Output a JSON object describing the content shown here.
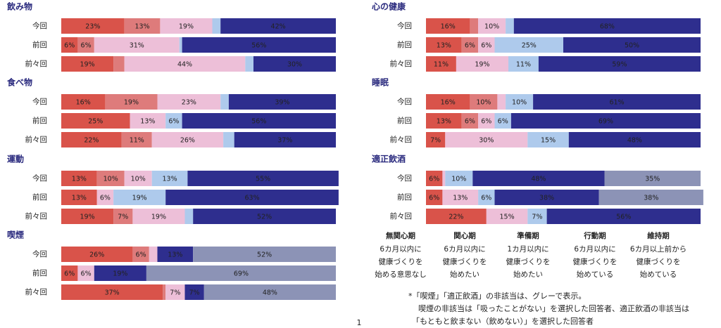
{
  "chart_data": [
    {
      "type": "bar",
      "title": "飲み物",
      "categories": [
        "今回",
        "前回",
        "前々回"
      ],
      "series": [
        {
          "values": [
            23,
            6,
            19
          ],
          "value_labels": [
            "23%",
            "6%",
            "19%"
          ]
        },
        {
          "values": [
            13,
            6,
            4
          ],
          "value_labels": [
            "13%",
            "6%",
            null
          ]
        },
        {
          "values": [
            19,
            31,
            44
          ],
          "value_labels": [
            "19%",
            "31%",
            "44%"
          ]
        },
        {
          "values": [
            3,
            1,
            3
          ],
          "value_labels": [
            null,
            null,
            null
          ]
        },
        {
          "values": [
            42,
            56,
            30
          ],
          "value_labels": [
            "42%",
            "56%",
            "30%"
          ]
        }
      ]
    },
    {
      "type": "bar",
      "title": "食べ物",
      "categories": [
        "今回",
        "前回",
        "前々回"
      ],
      "series": [
        {
          "values": [
            16,
            25,
            22
          ],
          "value_labels": [
            "16%",
            "25%",
            "22%"
          ]
        },
        {
          "values": [
            19,
            0,
            11
          ],
          "value_labels": [
            "19%",
            null,
            "11%"
          ]
        },
        {
          "values": [
            23,
            13,
            26
          ],
          "value_labels": [
            "23%",
            "13%",
            "26%"
          ]
        },
        {
          "values": [
            3,
            6,
            4
          ],
          "value_labels": [
            null,
            "6%",
            null
          ]
        },
        {
          "values": [
            39,
            56,
            37
          ],
          "value_labels": [
            "39%",
            "56%",
            "37%"
          ]
        }
      ]
    },
    {
      "type": "bar",
      "title": "運動",
      "categories": [
        "今回",
        "前回",
        "前々回"
      ],
      "series": [
        {
          "values": [
            13,
            13,
            19
          ],
          "value_labels": [
            "13%",
            "13%",
            "19%"
          ]
        },
        {
          "values": [
            10,
            0,
            7
          ],
          "value_labels": [
            "10%",
            null,
            "7%"
          ]
        },
        {
          "values": [
            10,
            6,
            19
          ],
          "value_labels": [
            "10%",
            "6%",
            "19%"
          ]
        },
        {
          "values": [
            13,
            19,
            3
          ],
          "value_labels": [
            "13%",
            "19%",
            null
          ]
        },
        {
          "values": [
            55,
            63,
            52
          ],
          "value_labels": [
            "55%",
            "63%",
            "52%"
          ]
        }
      ]
    },
    {
      "type": "bar",
      "title": "喫煙",
      "categories": [
        "今回",
        "前回",
        "前々回"
      ],
      "series": [
        {
          "values": [
            26,
            6,
            37
          ],
          "value_labels": [
            "26%",
            "6%",
            "37%"
          ]
        },
        {
          "values": [
            6,
            0,
            1
          ],
          "value_labels": [
            "6%",
            null,
            null
          ]
        },
        {
          "values": [
            3,
            6,
            7
          ],
          "value_labels": [
            null,
            "6%",
            "7%"
          ]
        },
        {
          "values": [
            0,
            0,
            0
          ],
          "value_labels": [
            null,
            null,
            null
          ]
        },
        {
          "values": [
            13,
            19,
            7
          ],
          "value_labels": [
            "13%",
            "19%",
            "7%"
          ]
        },
        {
          "color": "#8c93b6",
          "values": [
            52,
            69,
            48
          ],
          "value_labels": [
            "52%",
            "69%",
            "48%"
          ]
        }
      ]
    },
    {
      "type": "bar",
      "title": "心の健康",
      "categories": [
        "今回",
        "前回",
        "前々回"
      ],
      "series": [
        {
          "values": [
            16,
            13,
            11
          ],
          "value_labels": [
            "16%",
            "13%",
            "11%"
          ]
        },
        {
          "values": [
            3,
            6,
            0
          ],
          "value_labels": [
            null,
            "6%",
            null
          ]
        },
        {
          "values": [
            10,
            6,
            19
          ],
          "value_labels": [
            "10%",
            "6%",
            "19%"
          ]
        },
        {
          "values": [
            3,
            25,
            11
          ],
          "value_labels": [
            null,
            "25%",
            "11%"
          ]
        },
        {
          "values": [
            68,
            50,
            59
          ],
          "value_labels": [
            "68%",
            "50%",
            "59%"
          ]
        }
      ]
    },
    {
      "type": "bar",
      "title": "睡眠",
      "categories": [
        "今回",
        "前回",
        "前々回"
      ],
      "series": [
        {
          "values": [
            16,
            13,
            7
          ],
          "value_labels": [
            "16%",
            "13%",
            "7%"
          ]
        },
        {
          "values": [
            10,
            6,
            0
          ],
          "value_labels": [
            "10%",
            "6%",
            null
          ]
        },
        {
          "values": [
            3,
            6,
            30
          ],
          "value_labels": [
            null,
            "6%",
            "30%"
          ]
        },
        {
          "values": [
            10,
            6,
            15
          ],
          "value_labels": [
            "10%",
            "6%",
            "15%"
          ]
        },
        {
          "values": [
            61,
            69,
            48
          ],
          "value_labels": [
            "61%",
            "69%",
            "48%"
          ]
        }
      ]
    },
    {
      "type": "bar",
      "title": "適正飲酒",
      "categories": [
        "今回",
        "前回",
        "前々回"
      ],
      "series": [
        {
          "values": [
            6,
            6,
            22
          ],
          "value_labels": [
            "6%",
            "6%",
            "22%"
          ]
        },
        {
          "values": [
            0,
            0,
            0
          ],
          "value_labels": [
            null,
            null,
            null
          ]
        },
        {
          "values": [
            1,
            13,
            15
          ],
          "value_labels": [
            null,
            "13%",
            "15%"
          ]
        },
        {
          "values": [
            10,
            6,
            7
          ],
          "value_labels": [
            "10%",
            "6%",
            "7%"
          ]
        },
        {
          "values": [
            48,
            38,
            56
          ],
          "value_labels": [
            "48%",
            "38%",
            "56%"
          ]
        },
        {
          "color": "#8c93b6",
          "values": [
            35,
            38,
            0
          ],
          "value_labels": [
            "35%",
            "38%",
            null
          ]
        }
      ]
    }
  ],
  "legend": [
    {
      "name": "無関心期",
      "color": "#d9534a",
      "label_color": "#ffffff",
      "description": [
        "6カ月以内に",
        "健康づくりを",
        "始める意思なし"
      ]
    },
    {
      "name": "関心期",
      "color": "#de7b7b",
      "label_color": "#ffffff",
      "description": [
        "6カ月以内に",
        "健康づくりを",
        "始めたい"
      ]
    },
    {
      "name": "準備期",
      "color": "#edbfd8",
      "label_color": "#222222",
      "description": [
        "1カ月以内に",
        "健康づくりを",
        "始めたい"
      ]
    },
    {
      "name": "行動期",
      "color": "#aecaec",
      "label_color": "#222222",
      "description": [
        "6カ月以内に",
        "健康づくりを",
        "始めている"
      ]
    },
    {
      "name": "維持期",
      "color": "#2e2e8e",
      "label_color": "#ffffff",
      "description": [
        "6カ月以上前から",
        "健康づくりを",
        "始めている"
      ]
    }
  ],
  "footnote": [
    "*「喫煙」「適正飲酒」の非該当は、グレーで表示。",
    "喫煙の非該当は「吸ったことがない」を選択した回答者、適正飲酒の非該当は",
    "「もともと飲まない（飲めない）」を選択した回答者"
  ],
  "page_number": "1"
}
